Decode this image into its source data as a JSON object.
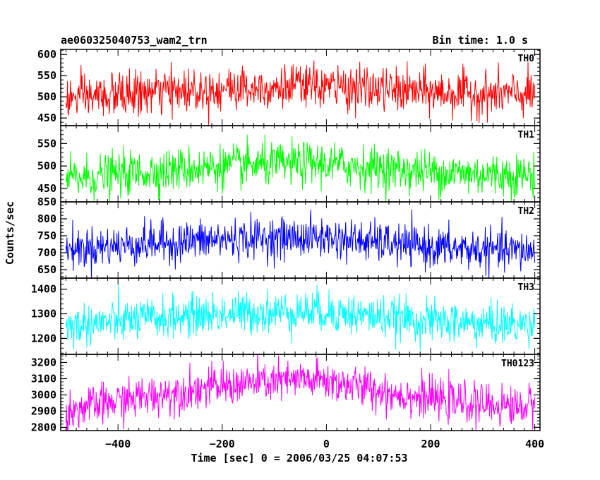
{
  "title_left": "ae060325040753_wam2_trn",
  "title_right": "Bin time: 1.0 s",
  "ylabel": "Counts/sec",
  "xlabel": "Time [sec] 0 = 2006/03/25 04:07:53",
  "chart_data": {
    "type": "line",
    "x_range": [
      -510,
      410
    ],
    "x_ticks": [
      -400,
      -200,
      0,
      200,
      400
    ],
    "x_tick_labels": [
      "−400",
      "−200",
      "0",
      "200",
      "400"
    ],
    "bin_time_s": 1.0,
    "x_start": -500,
    "x_end": 400,
    "panels": [
      {
        "name": "TH0",
        "color": "#ff0000",
        "ylim": [
          432,
          612
        ],
        "yticks": [
          450,
          500,
          550,
          600
        ],
        "ytick_labels": [
          "450",
          "500",
          "550",
          "600"
        ],
        "base_start": 495,
        "base_peak": 525,
        "base_end": 505,
        "noise": 26
      },
      {
        "name": "TH1",
        "color": "#00ff00",
        "ylim": [
          420,
          590
        ],
        "yticks": [
          450,
          500,
          550
        ],
        "ytick_labels": [
          "450",
          "500",
          "550"
        ],
        "base_start": 470,
        "base_peak": 505,
        "base_end": 480,
        "noise": 24
      },
      {
        "name": "TH2",
        "color": "#0000ff",
        "ylim": [
          625,
          850
        ],
        "yticks": [
          650,
          700,
          750,
          800,
          850
        ],
        "ytick_labels": [
          "650",
          "700",
          "750",
          "800",
          "850"
        ],
        "base_start": 710,
        "base_peak": 745,
        "base_end": 705,
        "noise": 30
      },
      {
        "name": "TH3",
        "color": "#00ffff",
        "ylim": [
          1135,
          1445
        ],
        "yticks": [
          1200,
          1300,
          1400
        ],
        "ytick_labels": [
          "1200",
          "1300",
          "1400"
        ],
        "base_start": 1250,
        "base_peak": 1310,
        "base_end": 1255,
        "noise": 42
      },
      {
        "name": "TH0123",
        "color": "#ff00ff",
        "ylim": [
          2780,
          3250
        ],
        "yticks": [
          2800,
          2900,
          3000,
          3100,
          3200
        ],
        "ytick_labels": [
          "2800",
          "2900",
          "3000",
          "3100",
          "3200"
        ],
        "base_start": 2900,
        "base_peak": 3090,
        "base_end": 2930,
        "noise": 62
      }
    ]
  }
}
